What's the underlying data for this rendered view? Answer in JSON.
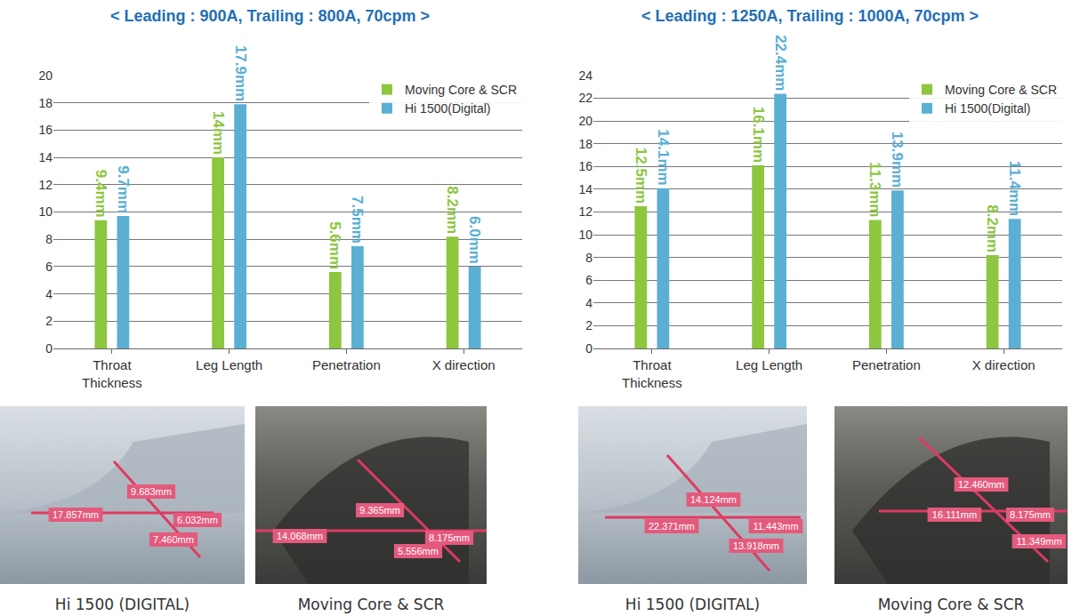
{
  "chart_data": [
    {
      "type": "bar",
      "title": "< Leading : 900A, Trailing : 800A, 70cpm >",
      "categories": [
        "Throat Thickness",
        "Leg Length",
        "Penetration",
        "X direction"
      ],
      "series": [
        {
          "name": "Moving Core & SCR",
          "color": "#8dc63f",
          "values": [
            9.4,
            14,
            5.6,
            8.2
          ],
          "value_labels": [
            "9.4mm",
            "14mm",
            "5.6mm",
            "8.2mm"
          ]
        },
        {
          "name": "Hi 1500(Digital)",
          "color": "#5aafd3",
          "values": [
            9.7,
            17.9,
            7.5,
            6.0
          ],
          "value_labels": [
            "9.7mm",
            "17.9mm",
            "7.5mm",
            "6.0mm"
          ]
        }
      ],
      "ylim": [
        0,
        20
      ],
      "yticks": [
        0,
        2,
        4,
        6,
        8,
        10,
        12,
        14,
        16,
        18,
        20
      ],
      "grid": true,
      "legend": "top right",
      "data_labels": true
    },
    {
      "type": "bar",
      "title": "< Leading : 1250A, Trailing : 1000A, 70cpm >",
      "categories": [
        "Throat Thickness",
        "Leg Length",
        "Penetration",
        "X direction"
      ],
      "series": [
        {
          "name": "Moving Core & SCR",
          "color": "#8dc63f",
          "values": [
            12.5,
            16.1,
            11.3,
            8.2
          ],
          "value_labels": [
            "12.5mm",
            "16.1mm",
            "11.3mm",
            "8.2mm"
          ]
        },
        {
          "name": "Hi 1500(Digital)",
          "color": "#5aafd3",
          "values": [
            14.1,
            22.4,
            13.9,
            11.4
          ],
          "value_labels": [
            "14.1mm",
            "22.4mm",
            "13.9mm",
            "11.4mm"
          ]
        }
      ],
      "ylim": [
        0,
        24
      ],
      "yticks": [
        0,
        2,
        4,
        6,
        8,
        10,
        12,
        14,
        16,
        18,
        20,
        22,
        24
      ],
      "grid": true,
      "legend": "top right",
      "data_labels": true
    }
  ],
  "photos": [
    {
      "caption": "Hi 1500 (DIGITAL)",
      "labels": [
        "9.683mm",
        "17.857mm",
        "6.032mm",
        "7.460mm"
      ]
    },
    {
      "caption": "Moving Core & SCR",
      "labels": [
        "9.365mm",
        "14.068mm",
        "8.175mm",
        "5.556mm"
      ]
    },
    {
      "caption": "Hi 1500 (DIGITAL)",
      "labels": [
        "14.124mm",
        "22.371mm",
        "11.443mm",
        "13.918mm"
      ]
    },
    {
      "caption": "Moving Core & SCR",
      "labels": [
        "12.460mm",
        "16.111mm",
        "8.175mm",
        "11.349mm"
      ]
    }
  ]
}
